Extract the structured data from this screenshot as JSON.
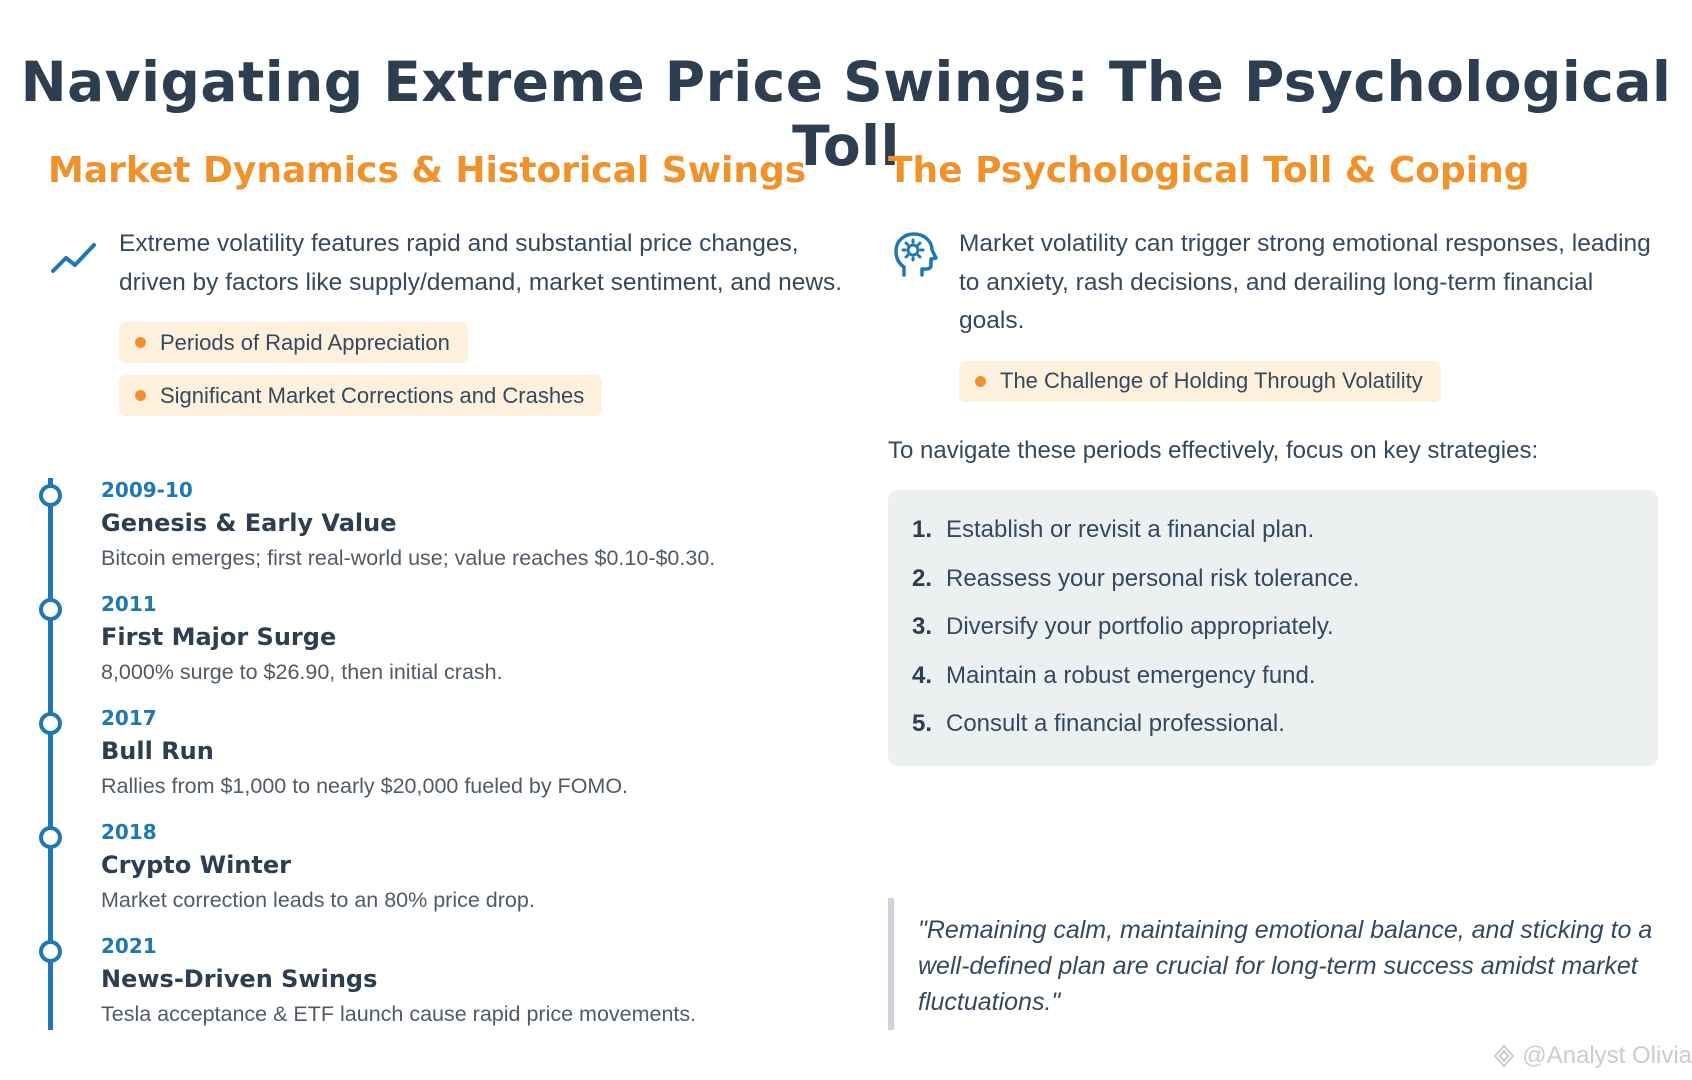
{
  "title": "Navigating Extreme Price Swings: The Psychological Toll",
  "left": {
    "heading": "Market Dynamics & Historical Swings",
    "intro_icon": "trending-line-icon",
    "intro": "Extreme volatility features rapid and substantial price changes, driven by factors like supply/demand, market sentiment, and news.",
    "tags": [
      "Periods of Rapid Appreciation",
      "Significant Market Corrections and Crashes"
    ],
    "timeline": [
      {
        "year": "2009-10",
        "title": "Genesis & Early Value",
        "desc": "Bitcoin emerges; first real-world use; value reaches $0.10-$0.30."
      },
      {
        "year": "2011",
        "title": "First Major Surge",
        "desc": "8,000% surge to $26.90, then initial crash."
      },
      {
        "year": "2017",
        "title": "Bull Run",
        "desc": "Rallies from $1,000 to nearly $20,000 fueled by FOMO."
      },
      {
        "year": "2018",
        "title": "Crypto Winter",
        "desc": "Market correction leads to an 80% price drop."
      },
      {
        "year": "2021",
        "title": "News-Driven Swings",
        "desc": "Tesla acceptance & ETF launch cause rapid price movements."
      }
    ]
  },
  "right": {
    "heading": "The Psychological Toll & Coping",
    "intro_icon": "head-gear-icon",
    "intro": "Market volatility can trigger strong emotional responses, leading to anxiety, rash decisions, and derailing long-term financial goals.",
    "tags": [
      "The Challenge of Holding Through Volatility"
    ],
    "strategy_intro": "To navigate these periods effectively, focus on key strategies:",
    "strategies": [
      {
        "num": "1.",
        "text": "Establish or revisit a financial plan."
      },
      {
        "num": "2.",
        "text": "Reassess your personal risk tolerance."
      },
      {
        "num": "3.",
        "text": "Diversify your portfolio appropriately."
      },
      {
        "num": "4.",
        "text": "Maintain a robust emergency fund."
      },
      {
        "num": "5.",
        "text": "Consult a financial professional."
      }
    ],
    "quote": "\"Remaining calm, maintaining emotional balance, and sticking to a well-defined plan are crucial for long-term success amidst market fluctuations.\""
  },
  "watermark": "@Analyst Olivia",
  "colors": {
    "accent": "#f0922b",
    "timeline": "#1f78b4",
    "text": "#2c3e50"
  }
}
